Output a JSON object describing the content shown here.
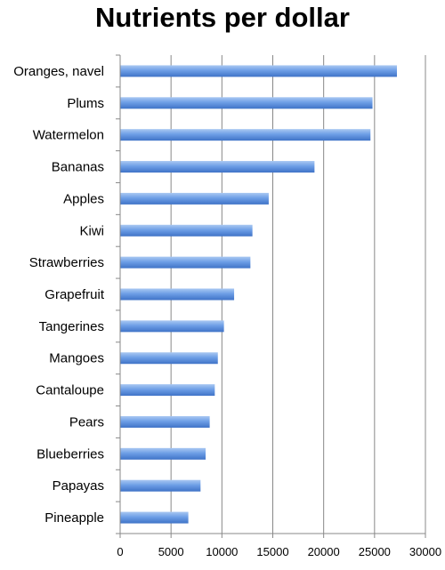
{
  "chart_data": {
    "type": "bar",
    "orientation": "horizontal",
    "title": "Nutrients per dollar",
    "xlabel": "",
    "ylabel": "",
    "categories": [
      "Oranges, navel",
      "Plums",
      "Watermelon",
      "Bananas",
      "Apples",
      "Kiwi",
      "Strawberries",
      "Grapefruit",
      "Tangerines",
      "Mangoes",
      "Cantaloupe",
      "Pears",
      "Blueberries",
      "Papayas",
      "Pineapple"
    ],
    "values": [
      27200,
      24800,
      24600,
      19100,
      14600,
      13000,
      12800,
      11200,
      10200,
      9600,
      9300,
      8800,
      8400,
      7900,
      6700
    ],
    "xlim": [
      0,
      30000
    ],
    "ticks": [
      "0",
      "5000",
      "10000",
      "15000",
      "20000",
      "25000",
      "30000"
    ],
    "tick_values": [
      0,
      5000,
      10000,
      15000,
      20000,
      25000,
      30000
    ],
    "grid": true,
    "legend": "none",
    "colors": {
      "bar_light": "#a9c8f2",
      "bar_mid": "#6d9ee6",
      "bar_dark": "#3f73c7",
      "grid": "#888888",
      "axis": "#888888"
    }
  }
}
